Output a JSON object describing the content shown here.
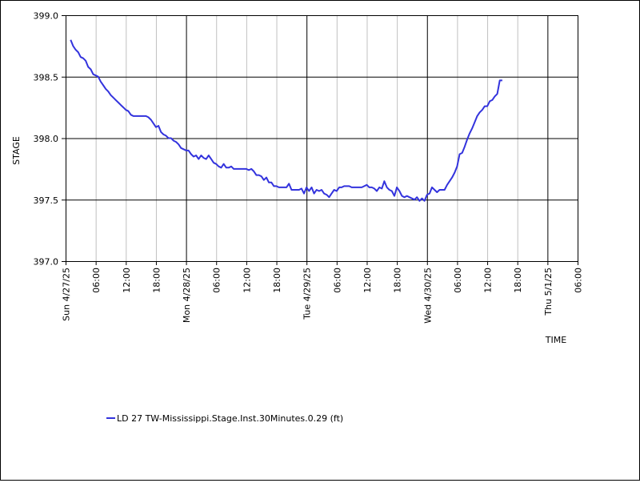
{
  "chart_data": {
    "type": "line",
    "ylabel": "STAGE",
    "xlabel": "TIME",
    "ylim": [
      397.0,
      399.0
    ],
    "yticks": [
      397.0,
      397.5,
      398.0,
      398.5,
      399.0
    ],
    "ytick_labels": [
      "397.0",
      "397.5",
      "398.0",
      "398.5",
      "399.0"
    ],
    "xlim": [
      0,
      102
    ],
    "xticks": [
      {
        "t": 0,
        "label": "Sun 4/27/25",
        "major": true
      },
      {
        "t": 6,
        "label": "06:00",
        "major": false
      },
      {
        "t": 12,
        "label": "12:00",
        "major": false
      },
      {
        "t": 18,
        "label": "18:00",
        "major": false
      },
      {
        "t": 24,
        "label": "Mon 4/28/25",
        "major": true
      },
      {
        "t": 30,
        "label": "06:00",
        "major": false
      },
      {
        "t": 36,
        "label": "12:00",
        "major": false
      },
      {
        "t": 42,
        "label": "18:00",
        "major": false
      },
      {
        "t": 48,
        "label": "Tue 4/29/25",
        "major": true
      },
      {
        "t": 54,
        "label": "06:00",
        "major": false
      },
      {
        "t": 60,
        "label": "12:00",
        "major": false
      },
      {
        "t": 66,
        "label": "18:00",
        "major": false
      },
      {
        "t": 72,
        "label": "Wed 4/30/25",
        "major": true
      },
      {
        "t": 78,
        "label": "06:00",
        "major": false
      },
      {
        "t": 84,
        "label": "12:00",
        "major": false
      },
      {
        "t": 90,
        "label": "18:00",
        "major": false
      },
      {
        "t": 96,
        "label": "Thu 5/1/25",
        "major": true
      },
      {
        "t": 102,
        "label": "06:00",
        "major": false
      }
    ],
    "grid": true,
    "legend_position": "bottom",
    "series": [
      {
        "name": "LD 27 TW-Mississippi.Stage.Inst.30Minutes.0.29 (ft)",
        "color": "#3333dd",
        "points": [
          [
            1.0,
            398.8
          ],
          [
            1.5,
            398.75
          ],
          [
            2.0,
            398.72
          ],
          [
            2.5,
            398.7
          ],
          [
            3.0,
            398.66
          ],
          [
            3.5,
            398.65
          ],
          [
            4.0,
            398.63
          ],
          [
            4.5,
            398.58
          ],
          [
            5.0,
            398.56
          ],
          [
            5.5,
            398.52
          ],
          [
            6.0,
            398.51
          ],
          [
            6.5,
            398.5
          ],
          [
            7.0,
            398.46
          ],
          [
            7.5,
            398.43
          ],
          [
            8.0,
            398.4
          ],
          [
            8.5,
            398.38
          ],
          [
            9.0,
            398.35
          ],
          [
            9.5,
            398.33
          ],
          [
            10.0,
            398.31
          ],
          [
            10.5,
            398.29
          ],
          [
            11.0,
            398.27
          ],
          [
            11.5,
            398.25
          ],
          [
            12.0,
            398.23
          ],
          [
            12.5,
            398.22
          ],
          [
            13.0,
            398.19
          ],
          [
            13.5,
            398.18
          ],
          [
            14.0,
            398.18
          ],
          [
            14.5,
            398.18
          ],
          [
            15.0,
            398.18
          ],
          [
            15.5,
            398.18
          ],
          [
            16.0,
            398.18
          ],
          [
            16.5,
            398.17
          ],
          [
            17.0,
            398.15
          ],
          [
            17.5,
            398.12
          ],
          [
            18.0,
            398.09
          ],
          [
            18.5,
            398.1
          ],
          [
            19.0,
            398.05
          ],
          [
            19.5,
            398.03
          ],
          [
            20.0,
            398.02
          ],
          [
            20.5,
            398.0
          ],
          [
            21.0,
            398.0
          ],
          [
            21.5,
            397.98
          ],
          [
            22.0,
            397.97
          ],
          [
            22.5,
            397.95
          ],
          [
            23.0,
            397.92
          ],
          [
            23.5,
            397.91
          ],
          [
            24.0,
            397.9
          ],
          [
            24.5,
            397.9
          ],
          [
            25.0,
            397.87
          ],
          [
            25.5,
            397.85
          ],
          [
            26.0,
            397.86
          ],
          [
            26.5,
            397.83
          ],
          [
            27.0,
            397.86
          ],
          [
            27.5,
            397.84
          ],
          [
            28.0,
            397.83
          ],
          [
            28.5,
            397.86
          ],
          [
            29.0,
            397.83
          ],
          [
            29.5,
            397.8
          ],
          [
            30.0,
            397.79
          ],
          [
            30.5,
            397.77
          ],
          [
            31.0,
            397.76
          ],
          [
            31.5,
            397.79
          ],
          [
            32.0,
            397.76
          ],
          [
            32.5,
            397.76
          ],
          [
            33.0,
            397.77
          ],
          [
            33.5,
            397.75
          ],
          [
            34.0,
            397.75
          ],
          [
            34.5,
            397.75
          ],
          [
            35.0,
            397.75
          ],
          [
            35.5,
            397.75
          ],
          [
            36.0,
            397.75
          ],
          [
            36.5,
            397.74
          ],
          [
            37.0,
            397.75
          ],
          [
            37.5,
            397.73
          ],
          [
            38.0,
            397.7
          ],
          [
            38.5,
            397.7
          ],
          [
            39.0,
            397.69
          ],
          [
            39.5,
            397.66
          ],
          [
            40.0,
            397.68
          ],
          [
            40.5,
            397.64
          ],
          [
            41.0,
            397.64
          ],
          [
            41.5,
            397.61
          ],
          [
            42.0,
            397.61
          ],
          [
            42.5,
            397.6
          ],
          [
            43.0,
            397.6
          ],
          [
            43.5,
            397.6
          ],
          [
            44.0,
            397.6
          ],
          [
            44.5,
            397.63
          ],
          [
            45.0,
            397.58
          ],
          [
            45.5,
            397.58
          ],
          [
            46.0,
            397.58
          ],
          [
            46.5,
            397.58
          ],
          [
            47.0,
            397.59
          ],
          [
            47.5,
            397.55
          ],
          [
            48.0,
            397.6
          ],
          [
            48.5,
            397.57
          ],
          [
            49.0,
            397.6
          ],
          [
            49.5,
            397.55
          ],
          [
            50.0,
            397.58
          ],
          [
            50.5,
            397.57
          ],
          [
            51.0,
            397.58
          ],
          [
            51.5,
            397.55
          ],
          [
            52.0,
            397.54
          ],
          [
            52.5,
            397.52
          ],
          [
            53.0,
            397.55
          ],
          [
            53.5,
            397.58
          ],
          [
            54.0,
            397.57
          ],
          [
            54.5,
            397.6
          ],
          [
            55.0,
            397.6
          ],
          [
            55.5,
            397.61
          ],
          [
            56.0,
            397.61
          ],
          [
            56.5,
            397.61
          ],
          [
            57.0,
            397.6
          ],
          [
            57.5,
            397.6
          ],
          [
            58.0,
            397.6
          ],
          [
            58.5,
            397.6
          ],
          [
            59.0,
            397.6
          ],
          [
            59.5,
            397.61
          ],
          [
            60.0,
            397.62
          ],
          [
            60.5,
            397.6
          ],
          [
            61.0,
            397.6
          ],
          [
            61.5,
            397.59
          ],
          [
            62.0,
            397.57
          ],
          [
            62.5,
            397.6
          ],
          [
            63.0,
            397.59
          ],
          [
            63.5,
            397.65
          ],
          [
            64.0,
            397.6
          ],
          [
            64.5,
            397.58
          ],
          [
            65.0,
            397.57
          ],
          [
            65.5,
            397.53
          ],
          [
            66.0,
            397.6
          ],
          [
            66.5,
            397.57
          ],
          [
            67.0,
            397.53
          ],
          [
            67.5,
            397.52
          ],
          [
            68.0,
            397.53
          ],
          [
            68.5,
            397.52
          ],
          [
            69.0,
            397.51
          ],
          [
            69.5,
            397.5
          ],
          [
            70.0,
            397.52
          ],
          [
            70.5,
            397.49
          ],
          [
            71.0,
            397.51
          ],
          [
            71.5,
            397.49
          ],
          [
            72.0,
            397.54
          ],
          [
            72.5,
            397.55
          ],
          [
            73.0,
            397.6
          ],
          [
            73.5,
            397.58
          ],
          [
            74.0,
            397.56
          ],
          [
            74.5,
            397.58
          ],
          [
            75.0,
            397.58
          ],
          [
            75.5,
            397.58
          ],
          [
            76.0,
            397.62
          ],
          [
            76.5,
            397.65
          ],
          [
            77.0,
            397.68
          ],
          [
            77.5,
            397.72
          ],
          [
            78.0,
            397.77
          ],
          [
            78.5,
            397.87
          ],
          [
            79.0,
            397.88
          ],
          [
            79.5,
            397.93
          ],
          [
            80.0,
            397.99
          ],
          [
            80.5,
            398.04
          ],
          [
            81.0,
            398.08
          ],
          [
            81.5,
            398.13
          ],
          [
            82.0,
            398.18
          ],
          [
            82.5,
            398.21
          ],
          [
            83.0,
            398.23
          ],
          [
            83.5,
            398.26
          ],
          [
            84.0,
            398.26
          ],
          [
            84.5,
            398.3
          ],
          [
            85.0,
            398.31
          ],
          [
            85.5,
            398.34
          ],
          [
            86.0,
            398.36
          ],
          [
            86.5,
            398.47
          ],
          [
            87.0,
            398.47
          ]
        ]
      }
    ]
  }
}
